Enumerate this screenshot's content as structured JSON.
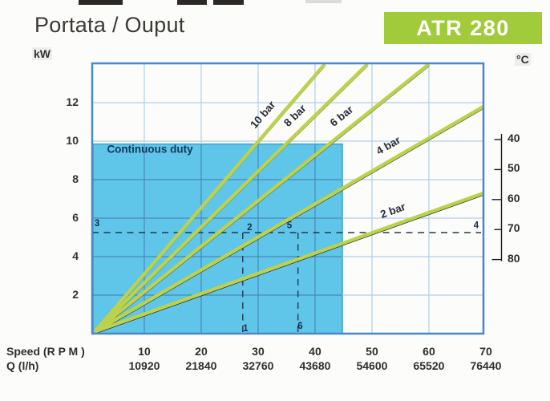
{
  "header": {
    "badge": "ATR 280",
    "badge_color": "#a2cb3b"
  },
  "chart_data": {
    "type": "line",
    "title": "Portata / Ouput",
    "y_axis": {
      "unit": "kW",
      "ticks": [
        12,
        10,
        8,
        6,
        4,
        2
      ],
      "range": [
        0,
        14
      ]
    },
    "x_axis": {
      "row1_label": "Speed (R P M )",
      "row1_ticks": [
        10,
        20,
        30,
        40,
        50,
        60,
        70
      ],
      "row2_label": "Q (l/h)",
      "row2_ticks": [
        10920,
        21840,
        32760,
        43680,
        54600,
        65520,
        76440
      ],
      "range": [
        0.85,
        69.6
      ]
    },
    "right_axis": {
      "unit": "°C",
      "ticks": [
        40,
        50,
        60,
        70,
        80
      ]
    },
    "series": [
      {
        "name": "10 bar",
        "from": [
          1.3,
          0.1
        ],
        "to": [
          41.7,
          14.0
        ],
        "label_at_rpm": 32.7
      },
      {
        "name": "8 bar",
        "from": [
          1.3,
          0.1
        ],
        "to": [
          49.2,
          14.0
        ],
        "label_at_rpm": 38.2
      },
      {
        "name": "6 bar",
        "from": [
          1.3,
          0.1
        ],
        "to": [
          60.0,
          14.0
        ],
        "label_at_rpm": 46.2
      },
      {
        "name": "4 bar",
        "from": [
          1.3,
          0.1
        ],
        "to": [
          69.6,
          11.8
        ],
        "label_at_rpm": 54.1
      },
      {
        "name": "2 bar",
        "from": [
          1.3,
          0.1
        ],
        "to": [
          69.6,
          7.3
        ],
        "label_at_rpm": 54.5
      }
    ],
    "duty_region": {
      "label": "Continuous duty",
      "rpm_max": 44.8,
      "kw_max": 9.85
    },
    "reference_marks": {
      "h_line_kw": 5.25,
      "v_lines_rpm": [
        27.3,
        37.0
      ],
      "labels": [
        {
          "text": "3",
          "rpm": 1.7,
          "kw": 5.75
        },
        {
          "text": "2",
          "rpm": 28.5,
          "kw": 5.55
        },
        {
          "text": "5",
          "rpm": 35.5,
          "kw": 5.65
        },
        {
          "text": "4",
          "rpm": 68.3,
          "kw": 5.65
        },
        {
          "text": "1",
          "rpm": 27.8,
          "kw": 0.3
        },
        {
          "text": "6",
          "rpm": 37.4,
          "kw": 0.42
        }
      ]
    },
    "legend_position": "on-lines",
    "grid": true,
    "colors": {
      "line": "#bdd24b",
      "line_shadow": "#1c2a33",
      "region": "#5fc5e9",
      "region_border": "#3aa5d4",
      "grid_light": "#aed0ea",
      "grid_on_region": "#4186ba",
      "plot_border": "#4a87c5",
      "dash": "#24384a"
    }
  }
}
